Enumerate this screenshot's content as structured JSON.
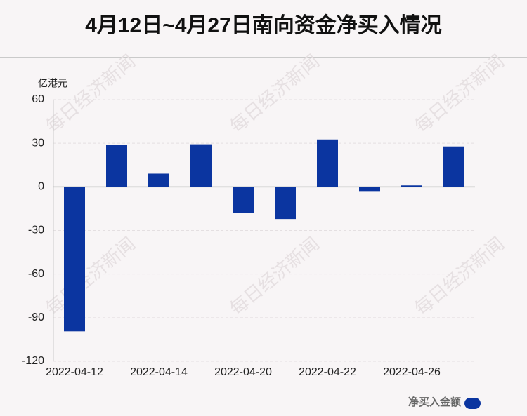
{
  "chart_data": {
    "type": "bar",
    "title": "4月12日~4月27日南向资金净买入情况",
    "y_label": "亿港元",
    "watermark": "每日经济新闻",
    "categories": [
      "2022-04-12",
      null,
      "2022-04-14",
      null,
      "2022-04-20",
      null,
      "2022-04-22",
      null,
      "2022-04-26",
      null
    ],
    "series": [
      {
        "name": "净买入金额",
        "color": "#0b35a0",
        "values": [
          -99.4,
          28.8,
          9.1,
          29.3,
          -17.8,
          -22.1,
          32.6,
          -2.9,
          1.0,
          27.8
        ]
      }
    ],
    "ylim": [
      -120,
      60
    ],
    "yticks": [
      -120,
      -90,
      -60,
      -30,
      0,
      30,
      60
    ],
    "grid": true,
    "legend": "bottom-right"
  }
}
